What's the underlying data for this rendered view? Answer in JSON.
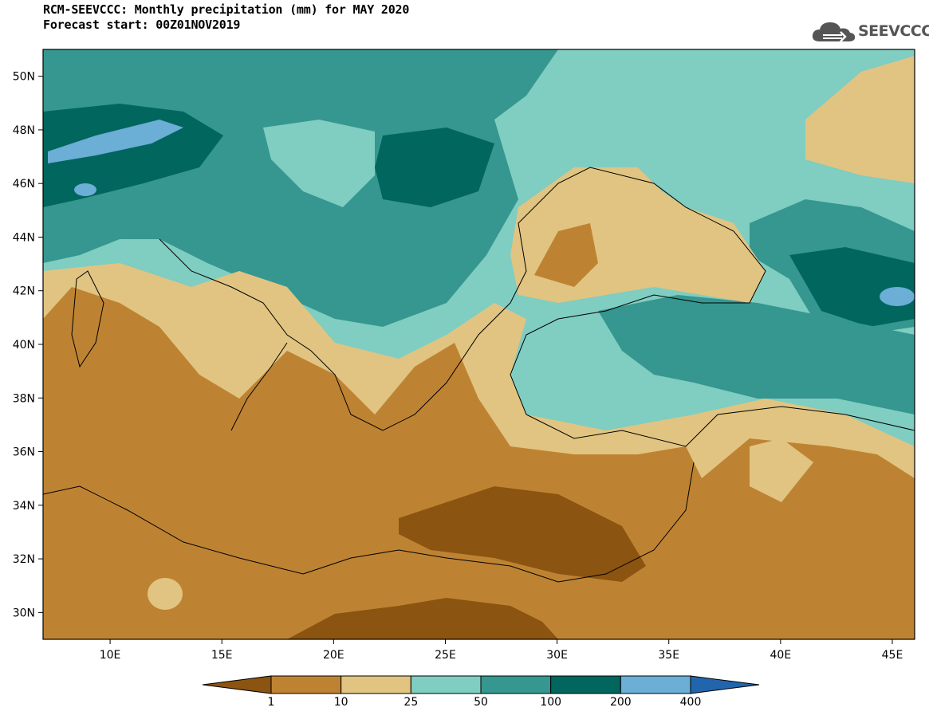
{
  "title_line1": "RCM-SEEVCCC: Monthly precipitation (mm) for MAY 2020",
  "title_line2": "Forecast start: 00Z01NOV2019",
  "logo_text": "SEEVCCC",
  "logo_icon": "cloud-icon",
  "map": {
    "lon_range": [
      7,
      46
    ],
    "lat_range": [
      29,
      51
    ],
    "lat_ticks": [
      "50N",
      "48N",
      "46N",
      "44N",
      "42N",
      "40N",
      "38N",
      "36N",
      "34N",
      "32N",
      "30N"
    ],
    "lon_ticks": [
      "10E",
      "15E",
      "20E",
      "25E",
      "30E",
      "35E",
      "40E",
      "45E"
    ]
  },
  "colorbar": {
    "colors": [
      "#8B5410",
      "#BE8332",
      "#E1C481",
      "#80CDC1",
      "#35978F",
      "#01665E",
      "#6BAED6",
      "#2166AC"
    ],
    "labels": [
      "1",
      "10",
      "25",
      "50",
      "100",
      "200",
      "400"
    ]
  }
}
